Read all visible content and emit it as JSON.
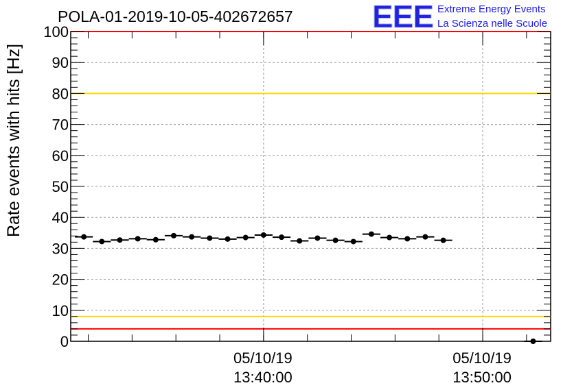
{
  "title": "POLA-01-2019-10-05-402672657",
  "logo": {
    "mark": "EEE",
    "line1": "Extreme Energy Events",
    "line2": "La Scienza nelle Scuole"
  },
  "chart_data": {
    "type": "scatter",
    "ylabel": "Rate events with hits [Hz]",
    "xlabel": "",
    "ylim": [
      0,
      100
    ],
    "y_ticks": [
      0,
      10,
      20,
      30,
      40,
      50,
      60,
      70,
      80,
      90,
      100
    ],
    "x_range_minutes": [
      13.5,
      35.4
    ],
    "x_tick_labels": [
      {
        "date": "05/10/19",
        "time": "13:40:00",
        "minute": 22.3
      },
      {
        "date": "05/10/19",
        "time": "13:50:00",
        "minute": 32.3
      }
    ],
    "grid": true,
    "reference_lines": [
      {
        "value": 100,
        "color": "#ff0000"
      },
      {
        "value": 80,
        "color": "#ffd700"
      },
      {
        "value": 8,
        "color": "#ffd700"
      },
      {
        "value": 4,
        "color": "#ff0000"
      }
    ],
    "series": [
      {
        "marker_color": "#000000",
        "bin_width_minutes": 0.82,
        "x": [
          14.1,
          14.92,
          15.74,
          16.56,
          17.38,
          18.2,
          19.02,
          19.84,
          20.66,
          21.48,
          22.3,
          23.12,
          23.94,
          24.76,
          25.58,
          26.4,
          27.22,
          28.04,
          28.86,
          29.68,
          30.5,
          31.32,
          32.14,
          32.96,
          33.78,
          34.6
        ],
        "y": [
          33.7,
          32.2,
          32.7,
          33.1,
          32.8,
          34.1,
          33.7,
          33.3,
          33.0,
          33.5,
          34.3,
          33.6,
          32.4,
          33.3,
          32.6,
          32.2,
          34.6,
          33.5,
          33.1,
          33.7,
          32.6,
          null,
          null,
          null,
          null,
          0
        ]
      }
    ]
  }
}
